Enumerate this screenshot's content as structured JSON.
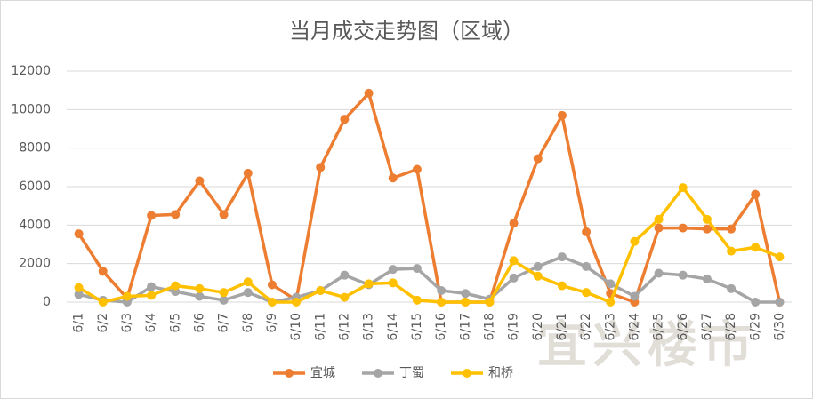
{
  "chart_data": {
    "type": "line",
    "title": "当月成交走势图（区域）",
    "watermark": "宜兴楼市",
    "categories": [
      "6/1",
      "6/2",
      "6/3",
      "6/4",
      "6/5",
      "6/6",
      "6/7",
      "6/8",
      "6/9",
      "6/10",
      "6/11",
      "6/12",
      "6/13",
      "6/14",
      "6/15",
      "6/16",
      "6/17",
      "6/18",
      "6/19",
      "6/20",
      "6/21",
      "6/22",
      "6/23",
      "6/24",
      "6/25",
      "6/26",
      "6/27",
      "6/28",
      "6/29",
      "6/30"
    ],
    "series": [
      {
        "name": "宜城",
        "color": "#ed7d31",
        "values": [
          3550,
          1600,
          200,
          4500,
          4550,
          6300,
          4550,
          6700,
          900,
          100,
          7000,
          9500,
          10850,
          6450,
          6900,
          0,
          0,
          0,
          4100,
          7450,
          9700,
          3650,
          450,
          0,
          3850,
          3850,
          3800,
          3800,
          5600,
          0
        ]
      },
      {
        "name": "丁蜀",
        "color": "#a5a5a5",
        "values": [
          400,
          100,
          0,
          800,
          550,
          300,
          100,
          500,
          0,
          250,
          600,
          1400,
          900,
          1700,
          1750,
          600,
          450,
          150,
          1250,
          1850,
          2350,
          1850,
          950,
          300,
          1500,
          1400,
          1200,
          700,
          0,
          0
        ]
      },
      {
        "name": "和桥",
        "color": "#ffc000",
        "values": [
          750,
          0,
          300,
          350,
          850,
          700,
          500,
          1050,
          0,
          0,
          600,
          250,
          950,
          1000,
          100,
          0,
          0,
          0,
          2150,
          1350,
          850,
          500,
          0,
          3150,
          4300,
          5950,
          4300,
          2650,
          2850,
          2350
        ]
      }
    ],
    "ylim": [
      0,
      12000
    ],
    "yticks": [
      0,
      2000,
      4000,
      6000,
      8000,
      10000,
      12000
    ],
    "grid": true,
    "legend": "bottom"
  }
}
